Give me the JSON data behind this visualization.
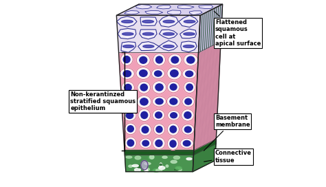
{
  "bg_color": "#ffffff",
  "label_left": "Non-kerantinzed\nstratified squamous\nepithelium",
  "label_top_right": "Flattened\nsquamous\ncell at\napical surface",
  "label_mid_right": "Basement\nmembrane",
  "label_bot_right": "Connective\ntissue",
  "pink_bg": "#f0a0b8",
  "cell_white": "#f8f0f2",
  "nucleus_blue": "#2020a0",
  "nucleus_dark": "#101080",
  "cell_border_pink": "#d06080",
  "sq_top_fill": "#e8e0f0",
  "sq_border": "#303090",
  "green_tissue": "#3a8a40",
  "dark_green": "#1a5a20",
  "connective_green": "#4a9450",
  "side_pink": "#d890a8",
  "side_hatch": "#206040",
  "top_face_fill": "#e0d8f0",
  "fig_width": 4.74,
  "fig_height": 2.72,
  "dpi": 100
}
